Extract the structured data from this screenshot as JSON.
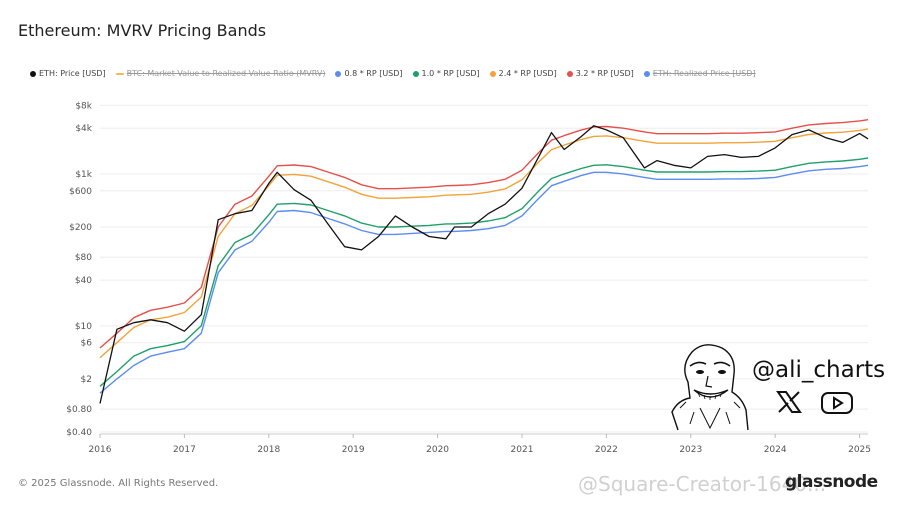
{
  "title": "Ethereum: MVRV Pricing Bands",
  "footer": "© 2025 Glassnode. All Rights Reserved.",
  "brand": "glassnode",
  "watermark": "@Square-Creator-1640...",
  "author_handle": "@ali_charts",
  "icons": {
    "x": "x-logo-icon",
    "youtube": "youtube-icon",
    "avatar": "cartoon-face-avatar"
  },
  "legend": [
    {
      "label": "ETH: Price [USD]",
      "color": "#111111",
      "hidden": false,
      "shape": "dot"
    },
    {
      "label": "BTC: Market Value to Realized Value Ratio (MVRV)",
      "color": "#f2b84b",
      "hidden": true,
      "shape": "line"
    },
    {
      "label": "0.8 * RP [USD]",
      "color": "#5b8def",
      "hidden": false,
      "shape": "dot"
    },
    {
      "label": "1.0 * RP [USD]",
      "color": "#1ea06a",
      "hidden": false,
      "shape": "dot"
    },
    {
      "label": "2.4 * RP [USD]",
      "color": "#f2a33a",
      "hidden": false,
      "shape": "dot"
    },
    {
      "label": "3.2 * RP [USD]",
      "color": "#e5504a",
      "hidden": false,
      "shape": "dot"
    },
    {
      "label": "ETH: Realized Price [USD]",
      "color": "#5b8def",
      "hidden": true,
      "shape": "dot"
    }
  ],
  "chart_data": {
    "type": "line",
    "title": "Ethereum: MVRV Pricing Bands",
    "y_scale": "log",
    "ylim": [
      0.4,
      10000
    ],
    "y_ticks": [
      {
        "label": "$8k",
        "value": 8000
      },
      {
        "label": "$4k",
        "value": 4000
      },
      {
        "label": "$1k",
        "value": 1000
      },
      {
        "label": "$600",
        "value": 600
      },
      {
        "label": "$200",
        "value": 200
      },
      {
        "label": "$80",
        "value": 80
      },
      {
        "label": "$40",
        "value": 40
      },
      {
        "label": "$10",
        "value": 10
      },
      {
        "label": "$6",
        "value": 6
      },
      {
        "label": "$2",
        "value": 2
      },
      {
        "label": "$0.80",
        "value": 0.8
      },
      {
        "label": "$0.40",
        "value": 0.4
      }
    ],
    "x_ticks": [
      "2016",
      "2017",
      "2018",
      "2019",
      "2020",
      "2021",
      "2022",
      "2023",
      "2024",
      "2025"
    ],
    "xlim": [
      2016.0,
      2025.1
    ],
    "x": [
      2016.0,
      2016.2,
      2016.4,
      2016.6,
      2016.8,
      2017.0,
      2017.2,
      2017.4,
      2017.6,
      2017.8,
      2018.0,
      2018.1,
      2018.3,
      2018.5,
      2018.7,
      2018.9,
      2019.1,
      2019.3,
      2019.5,
      2019.7,
      2019.9,
      2020.1,
      2020.2,
      2020.4,
      2020.6,
      2020.8,
      2021.0,
      2021.2,
      2021.35,
      2021.5,
      2021.7,
      2021.85,
      2022.0,
      2022.2,
      2022.45,
      2022.6,
      2022.8,
      2023.0,
      2023.2,
      2023.4,
      2023.6,
      2023.8,
      2024.0,
      2024.2,
      2024.4,
      2024.6,
      2024.8,
      2025.0,
      2025.1
    ],
    "series": [
      {
        "name": "ETH: Price [USD]",
        "color": "#111111",
        "values": [
          0.95,
          9,
          11,
          12,
          11,
          8.5,
          14,
          250,
          300,
          330,
          750,
          1050,
          620,
          450,
          220,
          110,
          100,
          150,
          280,
          200,
          150,
          140,
          200,
          200,
          300,
          400,
          650,
          1700,
          3500,
          2100,
          3100,
          4300,
          3800,
          3000,
          1200,
          1500,
          1300,
          1200,
          1700,
          1800,
          1650,
          1700,
          2200,
          3300,
          3800,
          3000,
          2600,
          3400,
          2900
        ]
      },
      {
        "name": "0.8 * RP [USD]",
        "color": "#5b8def",
        "values": [
          1.3,
          2,
          3,
          4,
          4.5,
          5,
          8,
          50,
          100,
          130,
          230,
          320,
          330,
          310,
          260,
          220,
          180,
          160,
          160,
          165,
          170,
          175,
          175,
          180,
          190,
          210,
          280,
          480,
          700,
          800,
          950,
          1050,
          1050,
          1000,
          900,
          850,
          850,
          850,
          850,
          860,
          860,
          870,
          900,
          1000,
          1100,
          1150,
          1180,
          1250,
          1300
        ]
      },
      {
        "name": "1.0 * RP [USD]",
        "color": "#1ea06a",
        "values": [
          1.6,
          2.5,
          4,
          5,
          5.5,
          6.2,
          10,
          62,
          125,
          160,
          290,
          400,
          410,
          390,
          330,
          280,
          225,
          200,
          200,
          205,
          210,
          220,
          220,
          225,
          240,
          265,
          350,
          600,
          870,
          1000,
          1180,
          1300,
          1320,
          1250,
          1120,
          1060,
          1060,
          1060,
          1060,
          1075,
          1075,
          1090,
          1120,
          1250,
          1380,
          1440,
          1480,
          1560,
          1620
        ]
      },
      {
        "name": "2.4 * RP [USD]",
        "color": "#f2a33a",
        "values": [
          3.8,
          6,
          9.5,
          12,
          13,
          15,
          24,
          150,
          300,
          385,
          700,
          960,
          985,
          935,
          790,
          670,
          540,
          480,
          480,
          490,
          500,
          525,
          530,
          540,
          575,
          635,
          840,
          1440,
          2090,
          2400,
          2830,
          3120,
          3170,
          3000,
          2690,
          2540,
          2540,
          2540,
          2540,
          2580,
          2580,
          2620,
          2690,
          3000,
          3310,
          3460,
          3550,
          3740,
          3890
        ]
      },
      {
        "name": "3.2 * RP [USD]",
        "color": "#e5504a",
        "values": [
          5.1,
          8,
          12.8,
          16,
          17.6,
          20,
          32,
          200,
          400,
          512,
          930,
          1280,
          1310,
          1250,
          1060,
          900,
          720,
          640,
          640,
          655,
          670,
          700,
          705,
          720,
          770,
          850,
          1120,
          1920,
          2780,
          3200,
          3780,
          4160,
          4220,
          4000,
          3580,
          3390,
          3390,
          3390,
          3390,
          3440,
          3440,
          3490,
          3580,
          4000,
          4420,
          4610,
          4740,
          4990,
          5180
        ]
      }
    ]
  }
}
